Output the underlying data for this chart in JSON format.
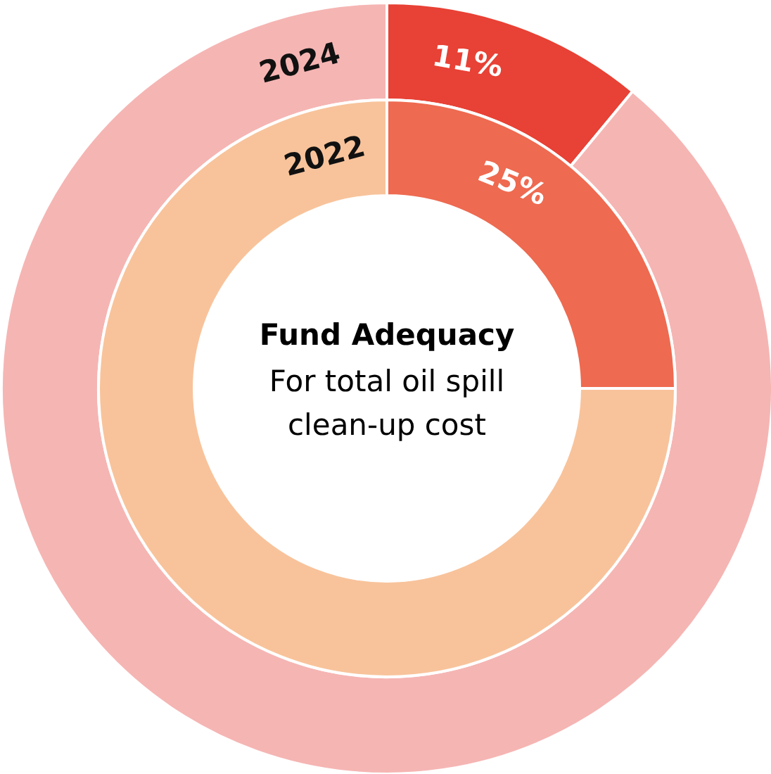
{
  "chart_data": [
    {
      "type": "donut",
      "title": "Fund Adequacy",
      "subtitle": "For total oil spill clean-up cost",
      "categories": [
        null,
        null
      ],
      "series": [
        {
          "name": "2024",
          "values": [
            11,
            89
          ],
          "colors": [
            "#e84135",
            "#f5b5b3"
          ],
          "value_labels": [
            "11%",
            null
          ]
        }
      ]
    },
    {
      "type": "donut",
      "categories": [
        null,
        null
      ],
      "series": [
        {
          "name": "2022",
          "values": [
            25,
            75
          ],
          "colors": [
            "#ee6a50",
            "#f8c39b"
          ],
          "value_labels": [
            "25%",
            null
          ]
        }
      ]
    }
  ]
}
